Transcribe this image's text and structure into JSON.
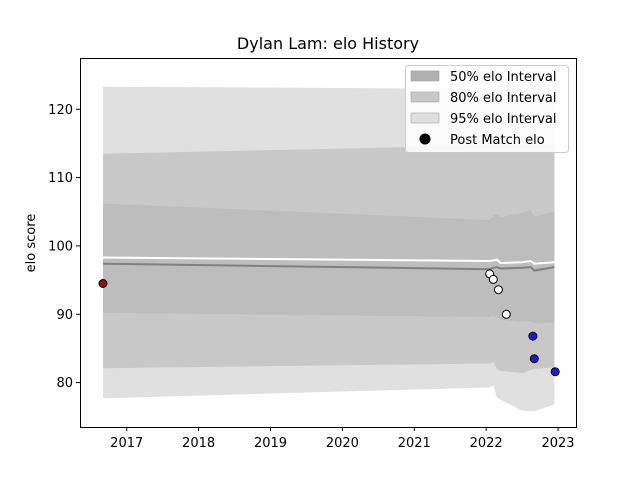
{
  "chart_data": {
    "type": "line",
    "title": "Dylan Lam: elo History",
    "xlabel": "",
    "ylabel": "elo score",
    "xlim": [
      2016.35,
      2023.25
    ],
    "ylim": [
      73.5,
      127.5
    ],
    "x_ticks": [
      "2017",
      "2018",
      "2019",
      "2020",
      "2021",
      "2022",
      "2023"
    ],
    "y_ticks": [
      "80",
      "90",
      "100",
      "110",
      "120"
    ],
    "grid": false,
    "legend_position": "top-right",
    "legend": [
      {
        "label": "50% elo Interval",
        "kind": "patch",
        "color": "#b0b0b0"
      },
      {
        "label": "80% elo Interval",
        "kind": "patch",
        "color": "#c8c8c8"
      },
      {
        "label": "95% elo Interval",
        "kind": "patch",
        "color": "#e0e0e0"
      },
      {
        "label": "Post Match elo",
        "kind": "marker",
        "color": "#000000"
      }
    ],
    "x": [
      2016.67,
      2022.05,
      2022.1,
      2022.15,
      2022.2,
      2022.5,
      2022.62,
      2022.67,
      2022.95
    ],
    "series": [
      {
        "role": "interval_95_upper",
        "color": "#e0e0e0",
        "values": [
          123.3,
          123.0,
          123.0,
          123.0,
          123.0,
          123.0,
          123.0,
          123.0,
          123.0
        ]
      },
      {
        "role": "interval_95_lower",
        "color": "#e0e0e0",
        "values": [
          77.7,
          79.3,
          79.6,
          77.8,
          77.5,
          75.9,
          75.8,
          75.8,
          76.8
        ]
      },
      {
        "role": "interval_80_upper",
        "color": "#c8c8c8",
        "values": [
          113.5,
          114.7,
          114.7,
          114.7,
          114.7,
          114.7,
          114.7,
          114.7,
          114.7
        ]
      },
      {
        "role": "interval_80_lower",
        "color": "#c8c8c8",
        "values": [
          82.1,
          82.8,
          83.0,
          82.0,
          81.7,
          81.4,
          81.8,
          82.0,
          82.2
        ]
      },
      {
        "role": "interval_50_upper",
        "color": "#b0b0b0",
        "values": [
          106.2,
          103.8,
          104.4,
          104.6,
          104.2,
          104.8,
          105.3,
          104.3,
          105.0
        ]
      },
      {
        "role": "interval_50_lower",
        "color": "#b0b0b0",
        "values": [
          90.2,
          89.6,
          89.8,
          89.5,
          89.2,
          88.9,
          89.0,
          88.7,
          88.8
        ]
      },
      {
        "role": "mean",
        "color": "#808080",
        "values": [
          97.4,
          96.6,
          96.8,
          96.9,
          96.7,
          96.8,
          96.9,
          96.4,
          96.9
        ]
      },
      {
        "role": "upper_line",
        "color": "#ffffff",
        "values": [
          98.3,
          97.8,
          97.9,
          98.0,
          97.5,
          97.6,
          97.8,
          97.4,
          97.6
        ]
      }
    ],
    "points": [
      {
        "x": 2016.67,
        "y": 94.5,
        "color": "#8b1010"
      },
      {
        "x": 2022.05,
        "y": 95.9,
        "color": "#ffffff"
      },
      {
        "x": 2022.1,
        "y": 95.1,
        "color": "#ffffff"
      },
      {
        "x": 2022.17,
        "y": 93.6,
        "color": "#ffffff"
      },
      {
        "x": 2022.28,
        "y": 90.0,
        "color": "#ffffff"
      },
      {
        "x": 2022.65,
        "y": 86.8,
        "color": "#1a1ad6"
      },
      {
        "x": 2022.67,
        "y": 83.5,
        "color": "#1a1ad6"
      },
      {
        "x": 2022.96,
        "y": 81.6,
        "color": "#1a1ad6"
      }
    ]
  }
}
